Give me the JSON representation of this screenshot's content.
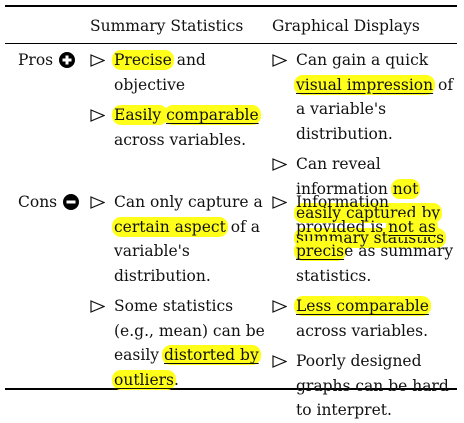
{
  "header": {
    "col1": "Summary Statistics",
    "col2": "Graphical Displays"
  },
  "rows": {
    "pros": {
      "label": "Pros",
      "icon": "plus-circle-icon",
      "summary": [
        {
          "hl": "Precise",
          "rest": " and objective"
        },
        {
          "hl": "Easily comparable",
          "rest": " across variables."
        }
      ],
      "graphical": [
        {
          "pre": "Can gain a quick ",
          "hl": "visual impression",
          "rest": " of a variable's distribution."
        },
        {
          "pre": "Can reveal information ",
          "hl": "not easily captured by summary statistics",
          "rest": ""
        }
      ]
    },
    "cons": {
      "label": "Cons",
      "icon": "minus-circle-icon",
      "summary": [
        {
          "pre": "Can only capture a ",
          "hl": "certain aspect",
          "rest": " of a variable's distribution."
        },
        {
          "pre": "Some statistics (e.g., mean) can be easily ",
          "hl": "distorted by outliers",
          "rest": "."
        }
      ],
      "graphical": [
        {
          "pre": "Information provided is ",
          "hl": "not as precis",
          "rest": "e as summary statistics."
        },
        {
          "hl": "Less comparable",
          "rest": " across variables."
        },
        {
          "pre": "Poorly designed graphs can be hard to interpret.",
          "hl": "",
          "rest": ""
        }
      ]
    }
  },
  "colors": {
    "highlight": "#ffff1a",
    "rule": "#000000"
  }
}
